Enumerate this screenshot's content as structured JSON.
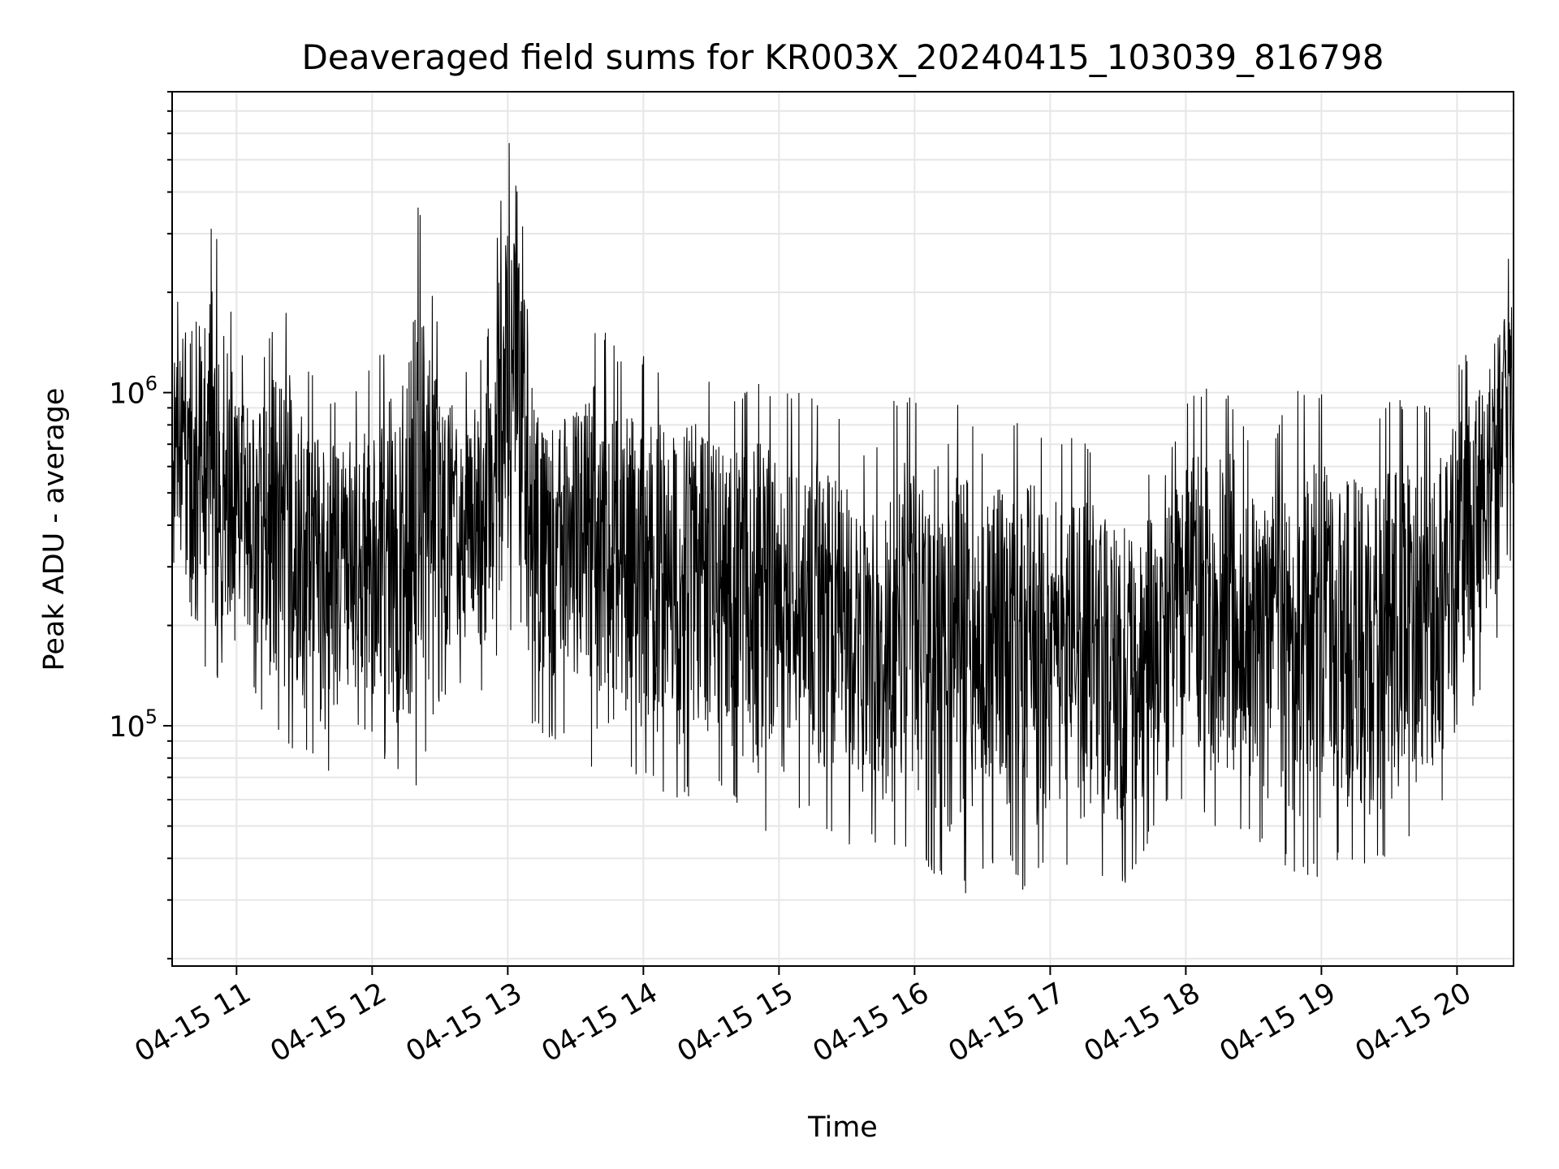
{
  "chart_data": {
    "type": "line",
    "title": "Deaveraged field sums for KR003X_20240415_103039_816798",
    "xlabel": "Time",
    "ylabel": "Peak ADU - average",
    "x_axis": {
      "kind": "time",
      "range": [
        "2024-04-15T10:31:30",
        "2024-04-15T20:25:00"
      ],
      "tick_labels": [
        "04-15 11",
        "04-15 12",
        "04-15 13",
        "04-15 14",
        "04-15 15",
        "04-15 16",
        "04-15 17",
        "04-15 18",
        "04-15 19",
        "04-15 20"
      ]
    },
    "y_axis": {
      "scale": "log",
      "range": [
        19000,
        8000000
      ],
      "major_ticks": [
        {
          "value": 100000,
          "base": "10",
          "exp": "5"
        },
        {
          "value": 1000000,
          "base": "10",
          "exp": "6"
        }
      ]
    },
    "grid": true,
    "series": [
      {
        "color": "#000000",
        "time_labels": [
          "10:32",
          "10:40",
          "10:50",
          "11:00",
          "11:10",
          "11:20",
          "11:30",
          "11:40",
          "11:50",
          "12:00",
          "12:10",
          "12:20",
          "12:30",
          "12:40",
          "12:50",
          "13:00",
          "13:10",
          "13:20",
          "13:30",
          "13:40",
          "13:50",
          "14:00",
          "14:10",
          "14:20",
          "14:30",
          "14:40",
          "14:50",
          "15:00",
          "15:10",
          "15:20",
          "15:30",
          "15:40",
          "15:50",
          "16:00",
          "16:10",
          "16:20",
          "16:30",
          "16:40",
          "16:50",
          "17:00",
          "17:10",
          "17:20",
          "17:30",
          "17:40",
          "17:50",
          "18:00",
          "18:10",
          "18:20",
          "18:30",
          "18:40",
          "18:50",
          "19:00",
          "19:10",
          "19:20",
          "19:30",
          "19:40",
          "19:50",
          "20:00",
          "20:10",
          "20:20",
          "20:25"
        ],
        "high": [
          1800000,
          2400000,
          3500000,
          1400000,
          1200000,
          2000000,
          1300000,
          1000000,
          1000000,
          1300000,
          1500000,
          4000000,
          1500000,
          1200000,
          1300000,
          6200000,
          2500000,
          1300000,
          1400000,
          1700000,
          1300000,
          1300000,
          1200000,
          1300000,
          1100000,
          1000000,
          1100000,
          1000000,
          1000000,
          1000000,
          850000,
          600000,
          1000000,
          1000000,
          600000,
          1000000,
          700000,
          850000,
          900000,
          700000,
          750000,
          700000,
          600000,
          650000,
          550000,
          1000000,
          1050000,
          1000000,
          700000,
          800000,
          1100000,
          1000000,
          900000,
          800000,
          950000,
          950000,
          900000,
          1200000,
          1500000,
          2500000,
          2700000
        ],
        "low": [
          230000,
          150000,
          130000,
          180000,
          110000,
          90000,
          80000,
          70000,
          100000,
          90000,
          70000,
          65000,
          120000,
          130000,
          120000,
          200000,
          100000,
          90000,
          90000,
          65000,
          70000,
          70000,
          60000,
          60000,
          70000,
          60000,
          50000,
          45000,
          55000,
          50000,
          40000,
          45000,
          40000,
          40000,
          35000,
          30000,
          35000,
          40000,
          30000,
          40000,
          35000,
          35000,
          30000,
          40000,
          55000,
          60000,
          50000,
          50000,
          45000,
          40000,
          35000,
          35000,
          40000,
          35000,
          40000,
          45000,
          45000,
          100000,
          120000,
          200000,
          220000
        ]
      }
    ]
  }
}
